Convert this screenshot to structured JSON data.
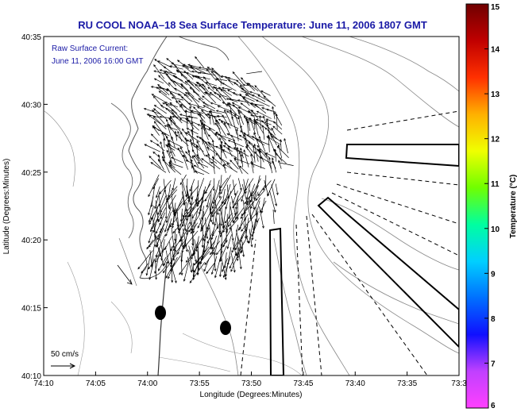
{
  "chart_data": {
    "type": "map",
    "title": "RU COOL  NOAA–18  Sea Surface Temperature:  June 11, 2006 1807 GMT",
    "xlabel": "Longitude (Degrees:Minutes)",
    "ylabel": "Latitude (Degrees:Minutes)",
    "x_ticks": [
      "74:10",
      "74:05",
      "74:00",
      "73:55",
      "73:50",
      "73:45",
      "73:40",
      "73:35",
      "73:3"
    ],
    "y_ticks": [
      "40:10",
      "40:15",
      "40:20",
      "40:25",
      "40:30",
      "40:35"
    ],
    "annotation": [
      "Raw Surface Current:",
      "June 11, 2006 16:00 GMT"
    ],
    "scale_label": "50 cm/s",
    "colorbar": {
      "label": "Temperature (°C)",
      "ticks": [
        "6",
        "7",
        "8",
        "9",
        "10",
        "11",
        "12",
        "13",
        "14",
        "15"
      ],
      "min": 6,
      "max": 15,
      "colors": [
        "#ff40ff",
        "#c040ff",
        "#1010ff",
        "#0070ff",
        "#00d0ff",
        "#00ffa0",
        "#70ff00",
        "#f0ff00",
        "#ffb000",
        "#ff3000",
        "#c00000",
        "#700000"
      ]
    },
    "grid": false
  }
}
